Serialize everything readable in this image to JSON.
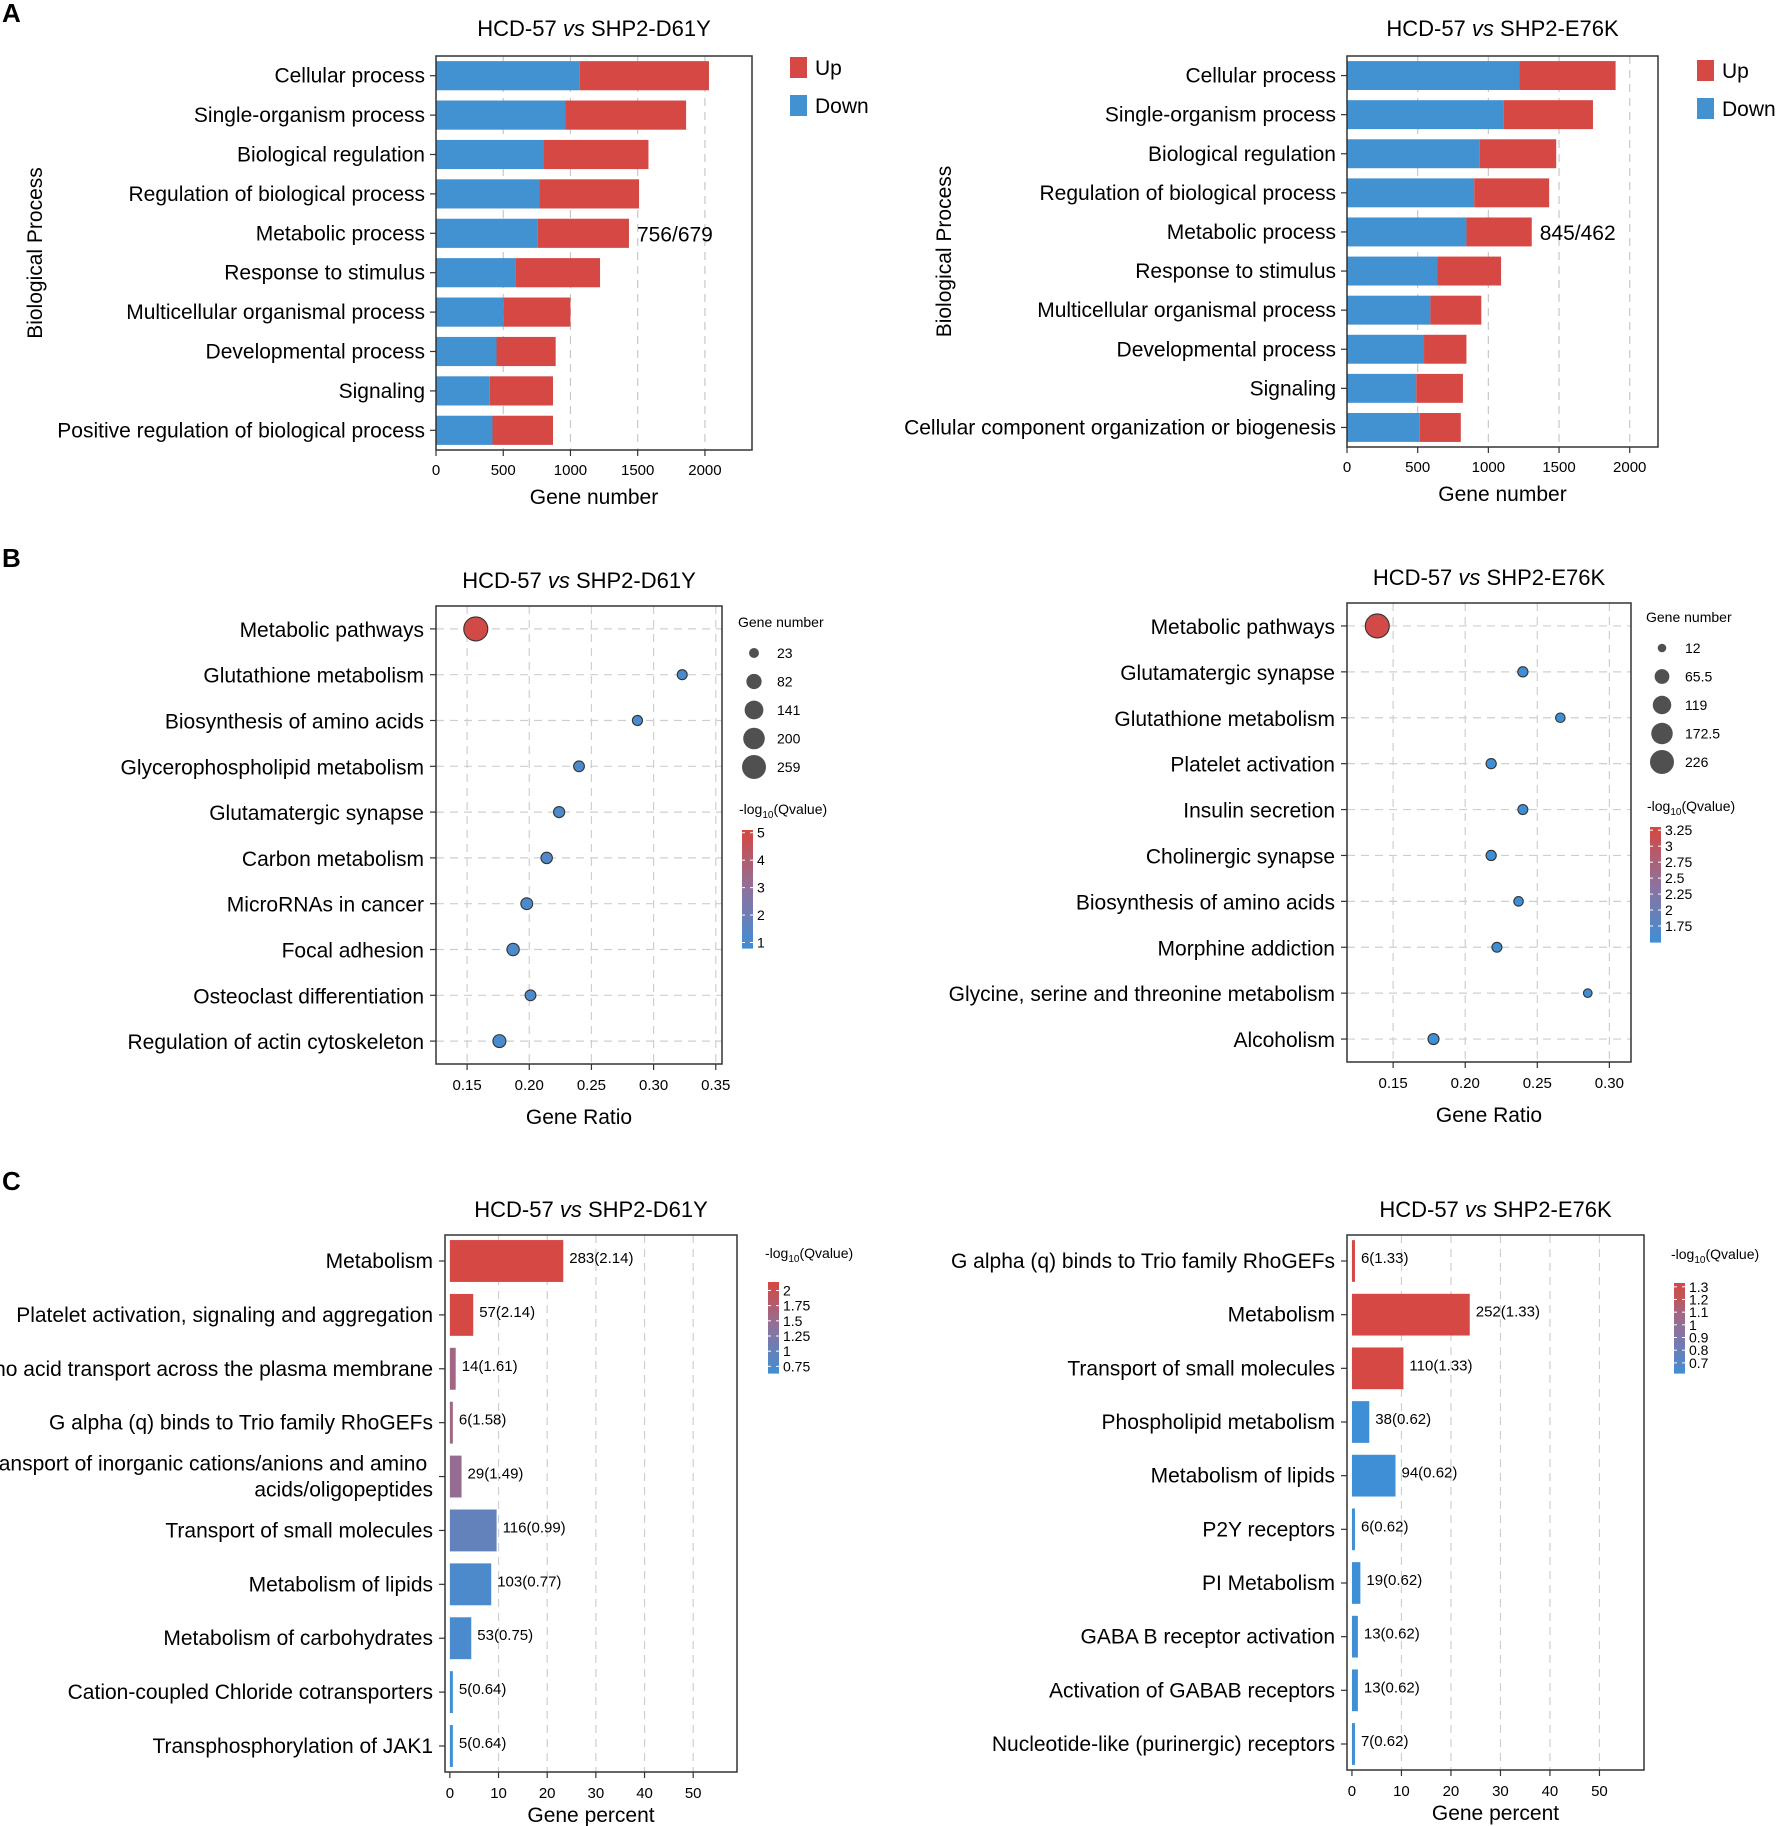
{
  "chart_data": [
    {
      "panel": "A",
      "type": "bar",
      "stacked": true,
      "orientation": "horizontal",
      "title_main": "HCD-57",
      "title_vs": "vs",
      "title_rest": "SHP2-D61Y",
      "ylabel": "Biological Process",
      "xlabel": "Gene number",
      "xlim": [
        0,
        2350
      ],
      "xticks": [
        0,
        500,
        1000,
        1500,
        2000
      ],
      "categories": [
        "Cellular process",
        "Single-organism process",
        "Biological regulation",
        "Regulation of biological process",
        "Metabolic process",
        "Response to stimulus",
        "Multicellular organismal process",
        "Developmental process",
        "Signaling",
        "Positive regulation of biological process"
      ],
      "series": [
        {
          "name": "Down",
          "color": "#4291d1",
          "values": [
            1070,
            960,
            800,
            770,
            756,
            590,
            500,
            450,
            400,
            420
          ]
        },
        {
          "name": "Up",
          "color": "#d54843",
          "values": [
            960,
            900,
            780,
            740,
            679,
            630,
            500,
            440,
            470,
            450
          ]
        }
      ],
      "annotation": {
        "category": "Metabolic process",
        "text": "756/679"
      },
      "legend": [
        "Up",
        "Down"
      ]
    },
    {
      "panel": "A",
      "type": "bar",
      "stacked": true,
      "orientation": "horizontal",
      "title_main": "HCD-57",
      "title_vs": "vs",
      "title_rest": "SHP2-E76K",
      "ylabel": "Biological Process",
      "xlabel": "Gene number",
      "xlim": [
        0,
        2200
      ],
      "xticks": [
        0,
        500,
        1000,
        1500,
        2000
      ],
      "categories": [
        "Cellular process",
        "Single-organism process",
        "Biological regulation",
        "Regulation of biological process",
        "Metabolic process",
        "Response to stimulus",
        "Multicellular organismal process",
        "Developmental process",
        "Signaling",
        "Cellular component organization or biogenesis"
      ],
      "series": [
        {
          "name": "Down",
          "color": "#4291d1",
          "values": [
            1220,
            1110,
            940,
            900,
            845,
            640,
            590,
            545,
            490,
            515
          ]
        },
        {
          "name": "Up",
          "color": "#d54843",
          "values": [
            680,
            630,
            540,
            530,
            462,
            450,
            360,
            300,
            330,
            290
          ]
        }
      ],
      "annotation": {
        "category": "Metabolic process",
        "text": "845/462"
      },
      "legend": [
        "Up",
        "Down"
      ]
    },
    {
      "panel": "B",
      "type": "scatter",
      "title_main": "HCD-57",
      "title_vs": "vs",
      "title_rest": "SHP2-D61Y",
      "xlabel": "Gene Ratio",
      "xlim": [
        0.125,
        0.355
      ],
      "xticks": [
        0.15,
        0.2,
        0.25,
        0.3,
        0.35
      ],
      "xtick_labels": [
        "0.15",
        "0.20",
        "0.25",
        "0.30",
        "0.35"
      ],
      "categories": [
        "Metabolic pathways",
        "Glutathione metabolism",
        "Biosynthesis of amino acids",
        "Glycerophospholipid metabolism",
        "Glutamatergic synapse",
        "Carbon metabolism",
        "MicroRNAs in cancer",
        "Focal adhesion",
        "Osteoclast differentiation",
        "Regulation of actin cytoskeleton"
      ],
      "x": [
        0.157,
        0.323,
        0.287,
        0.24,
        0.224,
        0.214,
        0.198,
        0.187,
        0.201,
        0.176
      ],
      "size": [
        259,
        23,
        24,
        30,
        33,
        36,
        40,
        45,
        30,
        52
      ],
      "neglog10q": [
        5,
        1.1,
        1.1,
        1.2,
        1.2,
        1.3,
        1.2,
        1.2,
        1.2,
        1.1
      ],
      "size_legend_title": "Gene number",
      "size_legend": [
        "23",
        "82",
        "141",
        "200",
        "259"
      ],
      "size_legend_values": [
        23,
        82,
        141,
        200,
        259
      ],
      "color_legend_title": "-log",
      "color_legend_sub": "10",
      "color_legend_suffix": "(Qvalue)",
      "color_ticks": [
        "5",
        "4",
        "3",
        "2",
        "1"
      ],
      "color_tick_values": [
        5,
        4,
        3,
        2,
        1
      ],
      "color_range": [
        0.8,
        5.1
      ]
    },
    {
      "panel": "B",
      "type": "scatter",
      "title_main": "HCD-57",
      "title_vs": "vs",
      "title_rest": "SHP2-E76K",
      "xlabel": "Gene Ratio",
      "xlim": [
        0.118,
        0.315
      ],
      "xticks": [
        0.15,
        0.2,
        0.25,
        0.3
      ],
      "xtick_labels": [
        "0.15",
        "0.20",
        "0.25",
        "0.30"
      ],
      "categories": [
        "Metabolic pathways",
        "Glutamatergic synapse",
        "Glutathione metabolism",
        "Platelet activation",
        "Insulin secretion",
        "Cholinergic synapse",
        "Biosynthesis of amino acids",
        "Morphine addiction",
        "Glycine, serine and threonine metabolism",
        "Alcoholism"
      ],
      "x": [
        0.139,
        0.24,
        0.266,
        0.218,
        0.24,
        0.218,
        0.237,
        0.222,
        0.285,
        0.178
      ],
      "size": [
        226,
        22,
        17,
        22,
        20,
        22,
        17,
        20,
        12,
        28
      ],
      "neglog10q": [
        3.25,
        1.5,
        1.5,
        1.5,
        1.5,
        1.5,
        1.5,
        1.5,
        1.5,
        1.5
      ],
      "size_legend_title": "Gene number",
      "size_legend": [
        "12",
        "65.5",
        "119",
        "172.5",
        "226"
      ],
      "size_legend_values": [
        12,
        65.5,
        119,
        172.5,
        226
      ],
      "color_legend_title": "-log",
      "color_legend_sub": "10",
      "color_legend_suffix": "(Qvalue)",
      "color_ticks": [
        "3.25",
        "3",
        "2.75",
        "2.5",
        "2.25",
        "2",
        "1.75"
      ],
      "color_tick_values": [
        3.25,
        3,
        2.75,
        2.5,
        2.25,
        2,
        1.75
      ],
      "color_range": [
        1.5,
        3.3
      ]
    },
    {
      "panel": "C",
      "type": "bar",
      "orientation": "horizontal",
      "title_main": "HCD-57",
      "title_vs": "vs",
      "title_rest": "SHP2-D61Y",
      "xlabel": "Gene percent",
      "xlim": [
        -1,
        59
      ],
      "xticks": [
        0,
        10,
        20,
        30,
        40,
        50
      ],
      "categories": [
        "Metabolism",
        "Platelet activation, signaling and aggregation",
        "Amino acid transport across the plasma membrane",
        "G alpha (q) binds to Trio family RhoGEFs",
        "Transport of inorganic cations/anions and amino acids/oligopeptides",
        "Transport of small molecules",
        "Metabolism of lipids",
        "Metabolism of carbohydrates",
        "Cation-coupled Chloride cotransporters",
        "Transphosphorylation of JAK1"
      ],
      "values": [
        23.3,
        4.8,
        1.2,
        0.5,
        2.4,
        9.6,
        8.5,
        4.4,
        0.4,
        0.4
      ],
      "neglog10q": [
        2.14,
        2.14,
        1.61,
        1.58,
        1.49,
        0.99,
        0.77,
        0.75,
        0.64,
        0.64
      ],
      "labels": [
        "283(2.14)",
        "57(2.14)",
        "14(1.61)",
        "6(1.58)",
        "29(1.49)",
        "116(0.99)",
        "103(0.77)",
        "53(0.75)",
        "5(0.64)",
        "5(0.64)"
      ],
      "color_legend_title": "-log",
      "color_legend_sub": "10",
      "color_legend_suffix": "(Qvalue)",
      "color_ticks": [
        "2",
        "1.75",
        "1.5",
        "1.25",
        "1",
        "0.75"
      ],
      "color_tick_values": [
        2,
        1.75,
        1.5,
        1.25,
        1,
        0.75
      ],
      "color_range": [
        0.64,
        2.14
      ]
    },
    {
      "panel": "C",
      "type": "bar",
      "orientation": "horizontal",
      "title_main": "HCD-57",
      "title_vs": "vs",
      "title_rest": "SHP2-E76K",
      "xlabel": "Gene percent",
      "xlim": [
        -1,
        59
      ],
      "xticks": [
        0,
        10,
        20,
        30,
        40,
        50
      ],
      "categories": [
        "G alpha (q) binds to Trio family RhoGEFs",
        "Metabolism",
        "Transport of small molecules",
        "Phospholipid metabolism",
        "Metabolism of lipids",
        "P2Y receptors",
        "PI Metabolism",
        "GABA B receptor activation",
        "Activation of GABAB receptors",
        "Nucleotide-like (purinergic) receptors"
      ],
      "values": [
        0.6,
        23.8,
        10.4,
        3.5,
        8.8,
        0.6,
        1.7,
        1.2,
        1.2,
        0.6
      ],
      "neglog10q": [
        1.33,
        1.33,
        1.33,
        0.62,
        0.62,
        0.62,
        0.62,
        0.62,
        0.62,
        0.62
      ],
      "labels": [
        "6(1.33)",
        "252(1.33)",
        "110(1.33)",
        "38(0.62)",
        "94(0.62)",
        "6(0.62)",
        "19(0.62)",
        "13(0.62)",
        "13(0.62)",
        "7(0.62)"
      ],
      "color_legend_title": "-log",
      "color_legend_sub": "10",
      "color_legend_suffix": "(Qvalue)",
      "color_ticks": [
        "1.3",
        "1.2",
        "1.1",
        "1",
        "0.9",
        "0.8",
        "0.7"
      ],
      "color_tick_values": [
        1.3,
        1.2,
        1.1,
        1,
        0.9,
        0.8,
        0.7
      ],
      "color_range": [
        0.62,
        1.33
      ]
    }
  ],
  "panels": {
    "a": "A",
    "b": "B",
    "c": "C"
  },
  "colors": {
    "up": "#d54843",
    "down": "#4291d1",
    "low": "#3f8fd6",
    "mid": "#8c739e",
    "high": "#d54843"
  }
}
